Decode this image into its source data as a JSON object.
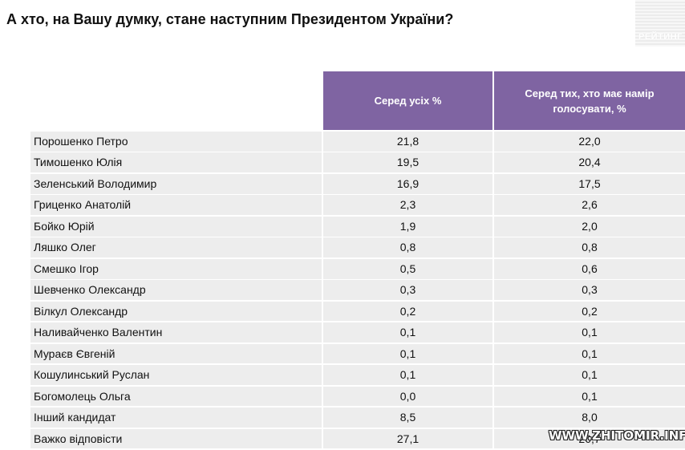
{
  "title": "А хто, на Вашу думку, стане наступним Президентом України?",
  "logo_text": "РЕЙТИНГ",
  "table": {
    "headers": {
      "name": "",
      "all": "Серед усіх %",
      "voters": "Серед тих, хто має намір голосувати, %"
    },
    "rows": [
      {
        "name": "Порошенко Петро",
        "all": "21,8",
        "voters": "22,0"
      },
      {
        "name": "Тимошенко Юлія",
        "all": "19,5",
        "voters": "20,4"
      },
      {
        "name": "Зеленський Володимир",
        "all": "16,9",
        "voters": "17,5"
      },
      {
        "name": "Гриценко Анатолій",
        "all": "2,3",
        "voters": "2,6"
      },
      {
        "name": "Бойко Юрій",
        "all": "1,9",
        "voters": "2,0"
      },
      {
        "name": "Ляшко Олег",
        "all": "0,8",
        "voters": "0,8"
      },
      {
        "name": "Смешко Ігор",
        "all": "0,5",
        "voters": "0,6"
      },
      {
        "name": "Шевченко Олександр",
        "all": "0,3",
        "voters": "0,3"
      },
      {
        "name": "Вілкул Олександр",
        "all": "0,2",
        "voters": "0,2"
      },
      {
        "name": "Наливайченко Валентин",
        "all": "0,1",
        "voters": "0,1"
      },
      {
        "name": "Мураєв Євгеній",
        "all": "0,1",
        "voters": "0,1"
      },
      {
        "name": "Кошулинський Руслан",
        "all": "0,1",
        "voters": "0,1"
      },
      {
        "name": "Богомолець Ольга",
        "all": "0,0",
        "voters": "0,1"
      },
      {
        "name": "Інший кандидат",
        "all": "8,5",
        "voters": "8,0"
      },
      {
        "name": "Важко відповісти",
        "all": "27,1",
        "voters": "26,7"
      }
    ]
  },
  "watermark": "WWW.ZHITOMIR.INFO",
  "colors": {
    "header_bg": "#7f64a2",
    "row_bg": "#ededed"
  }
}
